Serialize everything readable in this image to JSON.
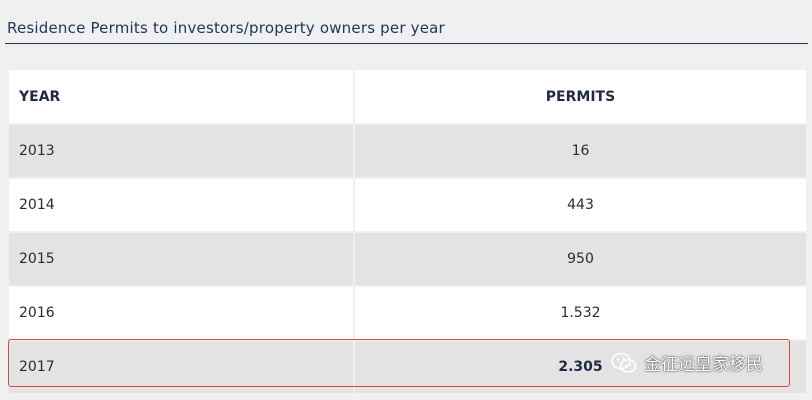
{
  "title": "Residence Permits to investors/property owners per year",
  "table": {
    "headers": {
      "year": "YEAR",
      "permits": "PERMITS"
    },
    "rows": [
      {
        "year": "2013",
        "permits": "16"
      },
      {
        "year": "2014",
        "permits": "443"
      },
      {
        "year": "2015",
        "permits": "950"
      },
      {
        "year": "2016",
        "permits": "1.532"
      },
      {
        "year": "2017",
        "permits": "2.305"
      }
    ]
  },
  "watermark": {
    "text": "金征远皇家移民",
    "icon": "wechat-icon"
  },
  "colors": {
    "heading": "#1f3556",
    "row_alt": "#e3e3e3",
    "highlight_border": "#d84a4a"
  }
}
